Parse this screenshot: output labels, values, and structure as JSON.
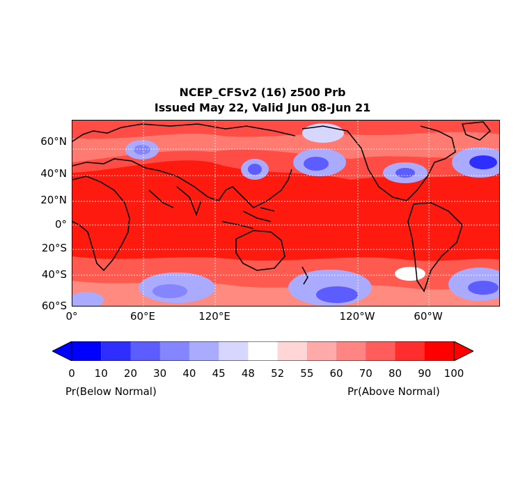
{
  "title": {
    "line1": "NCEP_CFSv2 (16) z500 Prb",
    "line2": "Issued May 22, Valid Jun 08-Jun 21"
  },
  "map": {
    "lat_labels": [
      "60°N",
      "40°N",
      "20°N",
      "0°",
      "20°S",
      "40°S",
      "60°S"
    ],
    "lon_labels": [
      "0°",
      "60°E",
      "120°E",
      "120°W",
      "60°W"
    ],
    "background_color": "#ff1a10"
  },
  "colorbar": {
    "levels": [
      "0",
      "10",
      "20",
      "30",
      "40",
      "45",
      "48",
      "52",
      "55",
      "60",
      "70",
      "80",
      "90",
      "100"
    ],
    "colors": [
      "#0000ff",
      "#2e2eff",
      "#5c5cff",
      "#8585ff",
      "#aaaaff",
      "#d6d6ff",
      "#ffffff",
      "#ffd6d6",
      "#ffaaaa",
      "#ff8585",
      "#ff5c5c",
      "#ff2e2e",
      "#ff0000"
    ],
    "label_left": "Pr(Below Normal)",
    "label_right": "Pr(Above Normal)"
  }
}
